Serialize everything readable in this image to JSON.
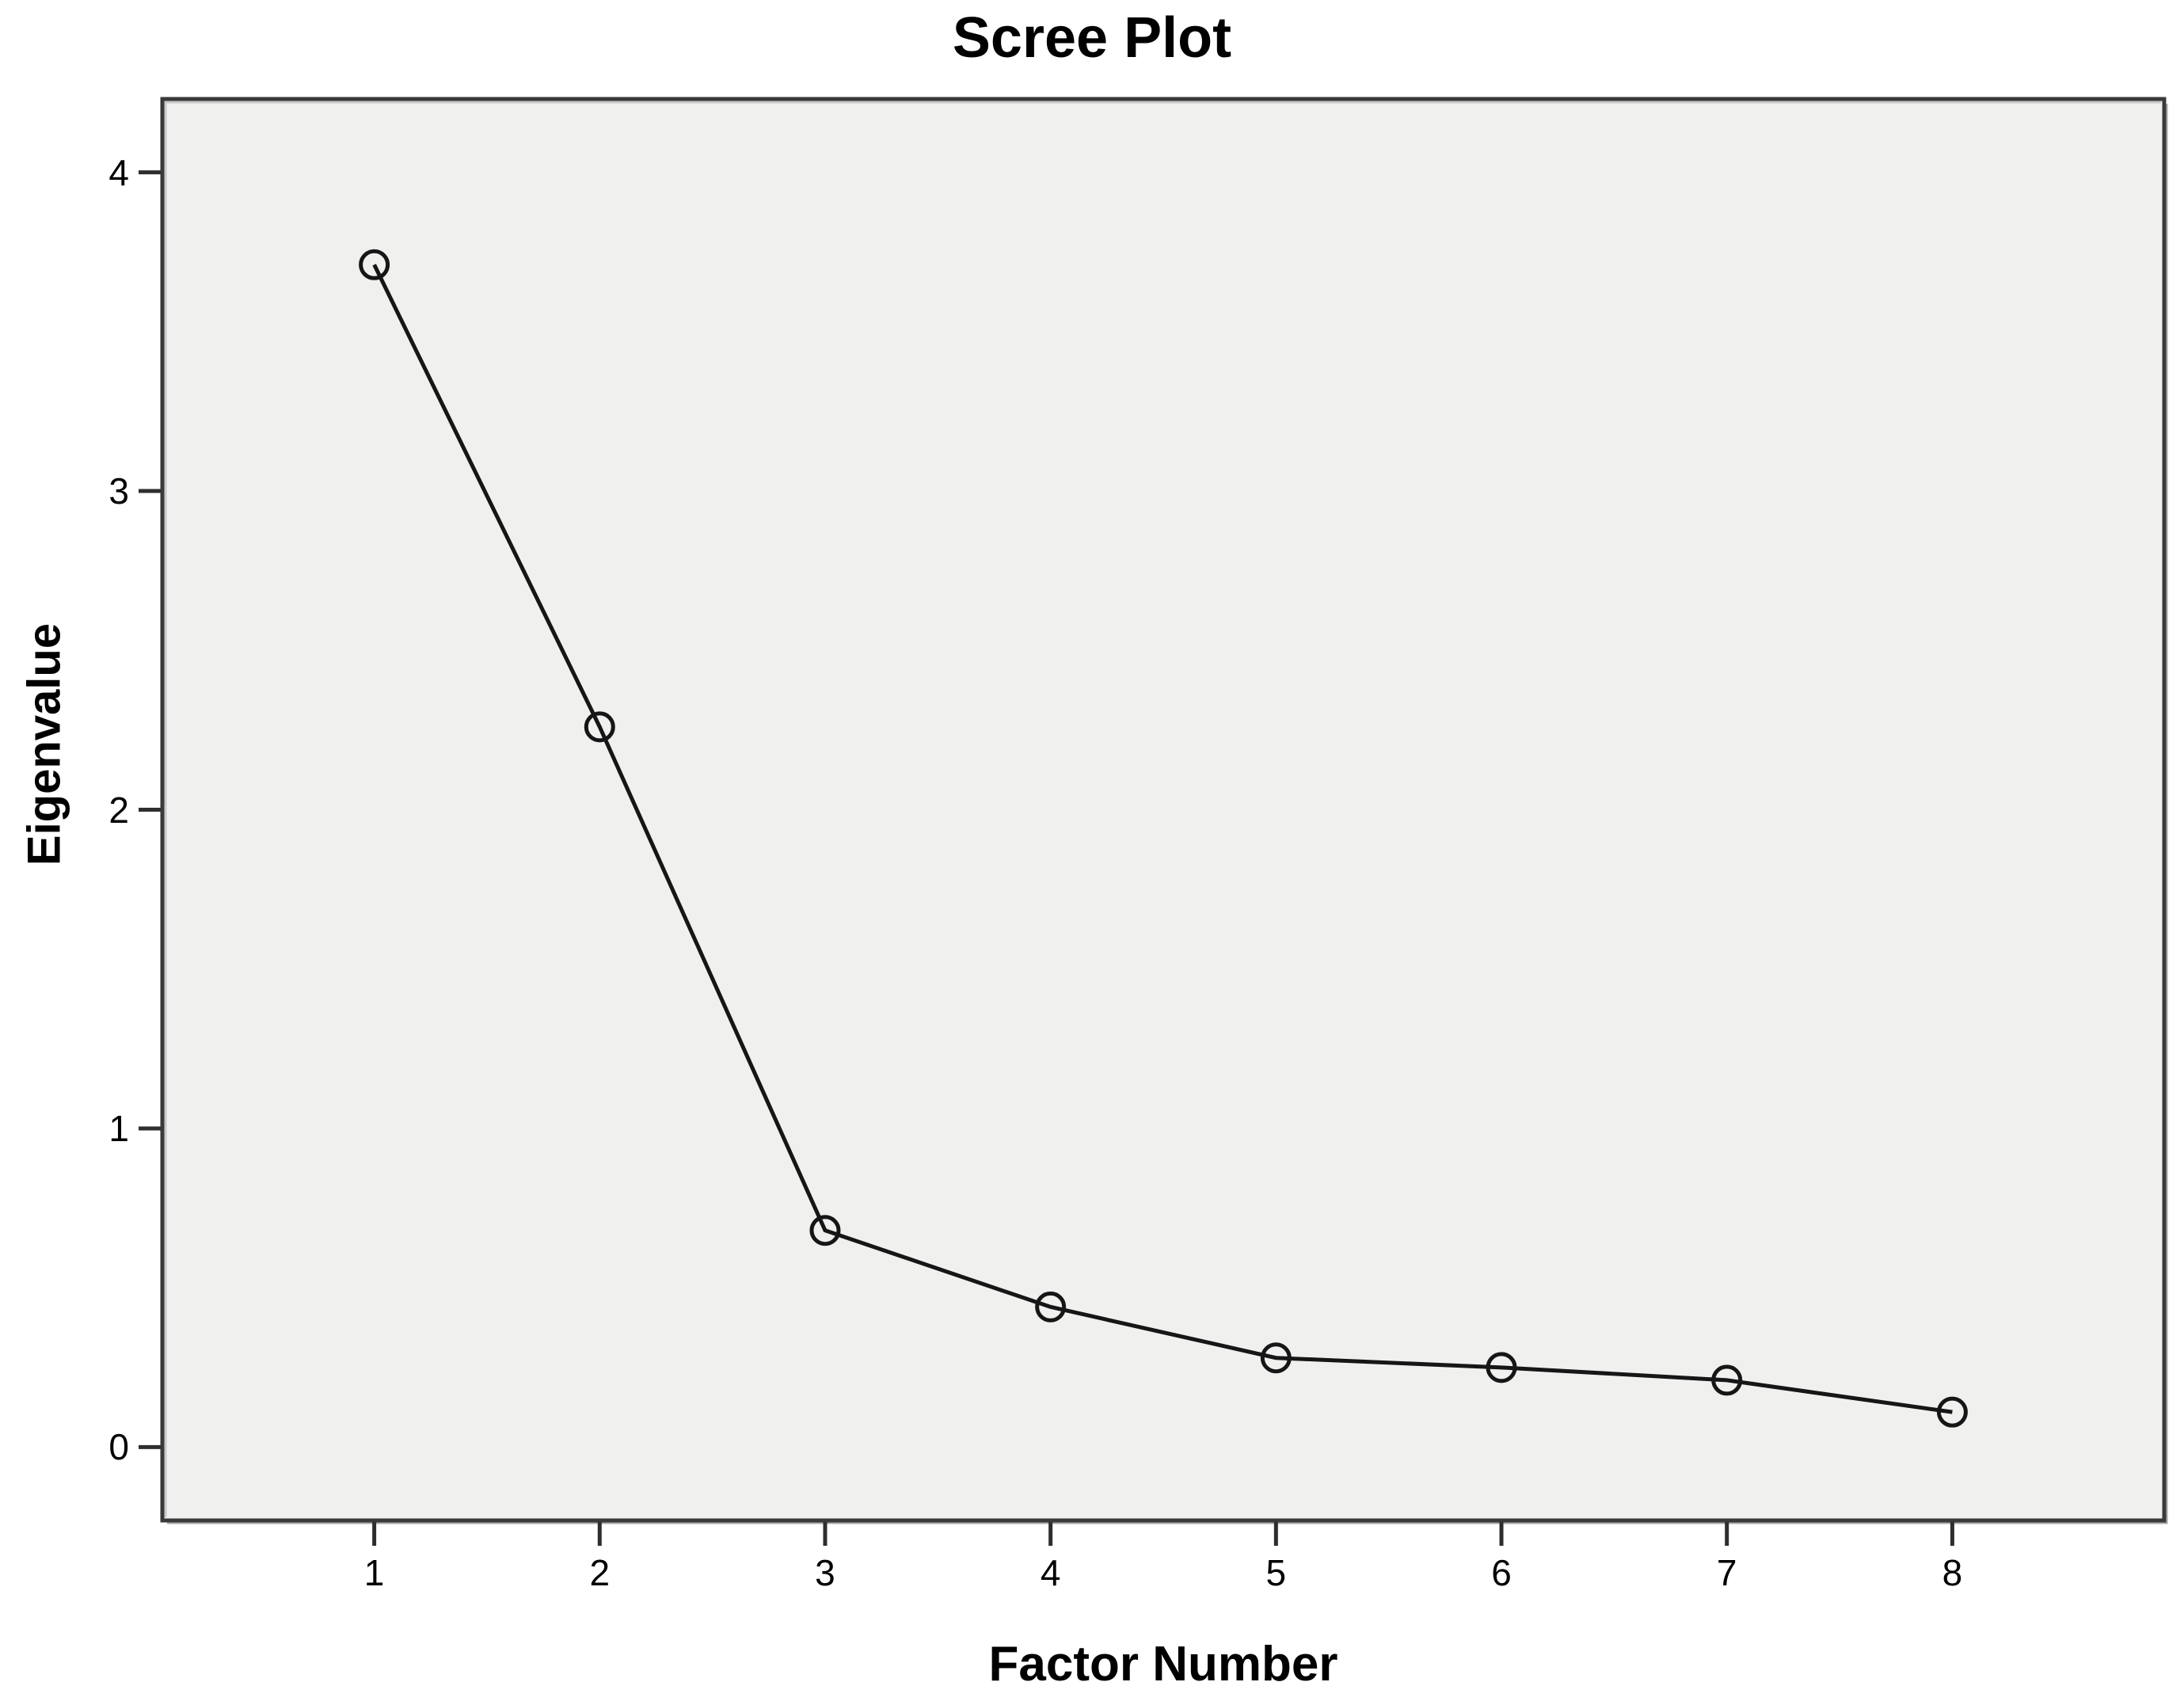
{
  "chart_data": {
    "type": "line",
    "title": "Scree Plot",
    "xlabel": "Factor Number",
    "ylabel": "Eigenvalue",
    "series": [
      {
        "name": "Eigenvalue",
        "x": [
          1,
          2,
          3,
          4,
          5,
          6,
          7,
          8
        ],
        "values": [
          3.71,
          2.26,
          0.68,
          0.44,
          0.28,
          0.25,
          0.21,
          0.11
        ]
      }
    ],
    "xticks": [
      "1",
      "2",
      "3",
      "4",
      "5",
      "6",
      "7",
      "8"
    ],
    "yticks": [
      "0",
      "1",
      "2",
      "3",
      "4"
    ],
    "xlim": [
      0.06,
      8.94
    ],
    "ylim": [
      -0.23,
      4.23
    ],
    "grid": false,
    "legend": "none",
    "marker": "open-circle",
    "colors": {
      "line": "#161616",
      "marker_stroke": "#161616",
      "plot_background": "#f0f0ef",
      "frame": "#3a3a3a",
      "frame_shadow": "#a8a8a8",
      "frame_highlight": "#c9c9c9",
      "tick": "#2e2e2e",
      "text": "#000000",
      "page_background": "#ffffff"
    }
  }
}
